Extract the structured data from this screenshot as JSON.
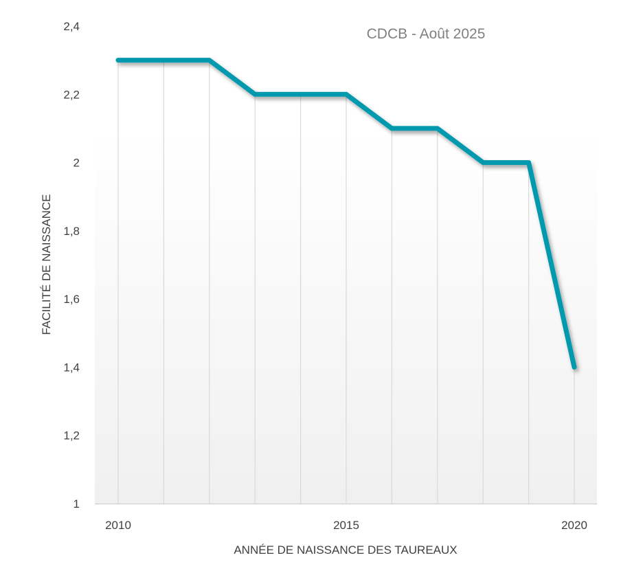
{
  "chart_data": {
    "type": "line",
    "title": "CDCB - Août 2025",
    "xlabel": "ANNÉE DE NAISSANCE DES TAUREAUX",
    "ylabel": "FACILITÉ DE NAISSANCE",
    "x": [
      2010,
      2011,
      2012,
      2013,
      2014,
      2015,
      2016,
      2017,
      2018,
      2019,
      2020
    ],
    "series": [
      {
        "values": [
          2.3,
          2.3,
          2.3,
          2.2,
          2.2,
          2.2,
          2.1,
          2.1,
          2.0,
          2.0,
          1.4
        ]
      }
    ],
    "ylim": [
      1,
      2.4
    ],
    "yticks": [
      "1",
      "1,2",
      "1,4",
      "1,6",
      "1,8",
      "2",
      "2,2",
      "2,4"
    ],
    "xticks": [
      "2010",
      "2015",
      "2020"
    ],
    "xlim": [
      2010,
      2020
    ],
    "grid": false,
    "drop_lines": true,
    "line_color": "#0399AD"
  }
}
